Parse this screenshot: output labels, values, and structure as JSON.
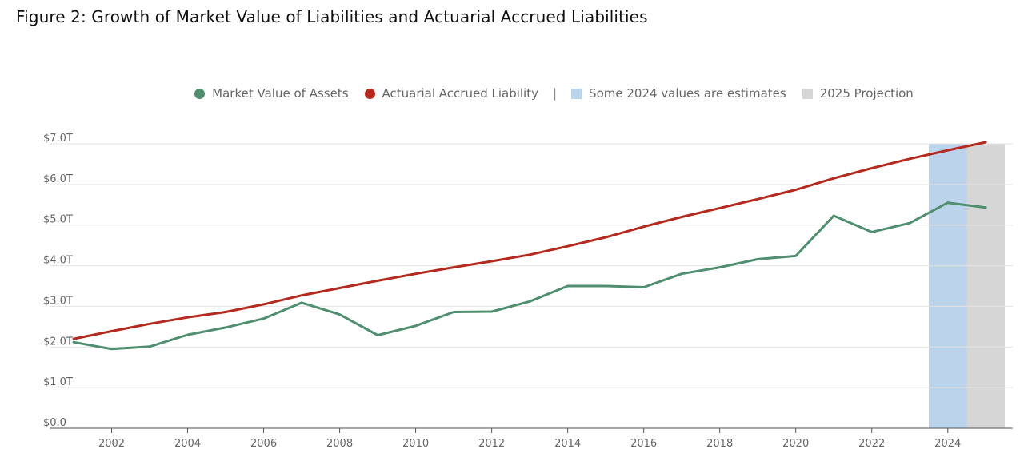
{
  "chart_data": {
    "type": "line",
    "title": "Figure 2: Growth of Market Value of Liabilities and Actuarial Accrued Liabilities",
    "x": [
      2001,
      2002,
      2003,
      2004,
      2005,
      2006,
      2007,
      2008,
      2009,
      2010,
      2011,
      2012,
      2013,
      2014,
      2015,
      2016,
      2017,
      2018,
      2019,
      2020,
      2021,
      2022,
      2023,
      2024,
      2025
    ],
    "series": [
      {
        "name": "Market Value of Assets",
        "color": "#4f8f6f",
        "values": [
          2.12,
          1.95,
          2.01,
          2.3,
          2.48,
          2.7,
          3.09,
          2.8,
          2.29,
          2.52,
          2.86,
          2.87,
          3.12,
          3.5,
          3.5,
          3.47,
          3.8,
          3.96,
          4.16,
          4.24,
          5.23,
          4.83,
          5.05,
          5.55,
          5.43
        ]
      },
      {
        "name": "Actuarial Accrued Liability",
        "color": "#b52a1f",
        "values": [
          2.2,
          2.39,
          2.57,
          2.73,
          2.86,
          3.05,
          3.27,
          3.45,
          3.63,
          3.8,
          3.96,
          4.11,
          4.27,
          4.48,
          4.7,
          4.96,
          5.2,
          5.42,
          5.64,
          5.87,
          6.15,
          6.4,
          6.63,
          6.84,
          7.04
        ]
      }
    ],
    "shaded_regions": [
      {
        "label": "Some 2024 values are estimates",
        "from": 2023.5,
        "to": 2024.5,
        "color": "#bcd3ec"
      },
      {
        "label": "2025 Projection",
        "from": 2024.5,
        "to": 2025.5,
        "color": "#d6d6d6"
      }
    ],
    "legend_separator": "|",
    "y_ticks": [
      {
        "value": 0,
        "label": "$0.0"
      },
      {
        "value": 1,
        "label": "$1.0T"
      },
      {
        "value": 2,
        "label": "$2.0T"
      },
      {
        "value": 3,
        "label": "$3.0T"
      },
      {
        "value": 4,
        "label": "$4.0T"
      },
      {
        "value": 5,
        "label": "$5.0T"
      },
      {
        "value": 6,
        "label": "$6.0T"
      },
      {
        "value": 7,
        "label": "$7.0T"
      }
    ],
    "x_ticks": [
      2002,
      2004,
      2006,
      2008,
      2010,
      2012,
      2014,
      2016,
      2018,
      2020,
      2022,
      2024
    ],
    "xlim": [
      2001,
      2025.5
    ],
    "ylim": [
      0,
      7
    ],
    "xlabel": "",
    "ylabel": "",
    "grid": true,
    "legend_position": "top"
  }
}
